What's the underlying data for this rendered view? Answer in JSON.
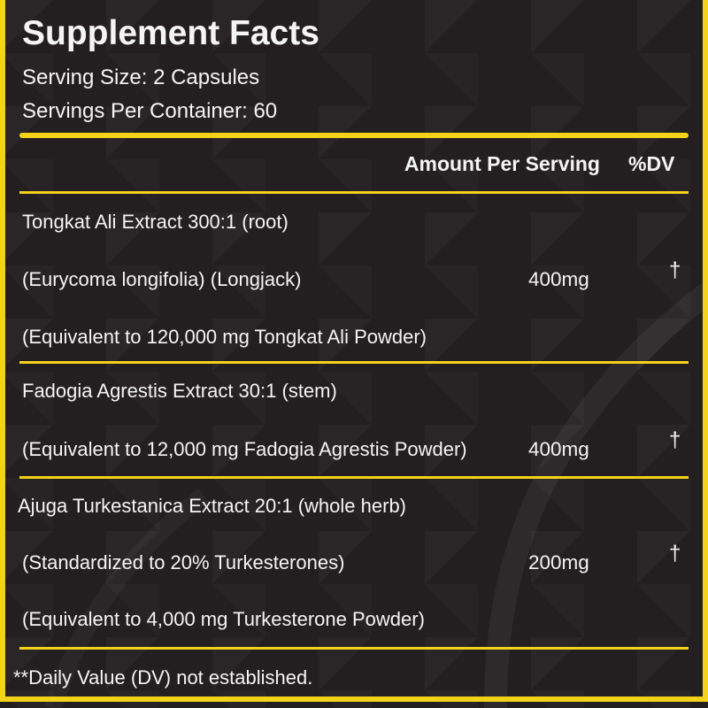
{
  "title": "Supplement Facts",
  "serving_size": "Serving Size: 2 Capsules",
  "servings_per_container": "Servings Per Container: 60",
  "header": {
    "amount": "Amount Per Serving",
    "dv": "%DV"
  },
  "ingredients": [
    {
      "lines": [
        "Tongkat Ali  Extract 300:1 (root)",
        "(Eurycoma longifolia) (Longjack)",
        "(Equivalent to 120,000 mg Tongkat Ali Powder)"
      ],
      "amount": "400mg",
      "dv": "†"
    },
    {
      "lines": [
        "Fadogia Agrestis Extract 30:1 (stem)",
        "(Equivalent to 12,000 mg Fadogia Agrestis Powder)"
      ],
      "amount": "400mg",
      "dv": "†"
    },
    {
      "lines": [
        "Ajuga Turkestanica Extract 20:1 (whole herb)",
        "(Standardized to 20% Turkesterones)",
        "(Equivalent to 4,000 mg Turkesterone Powder)"
      ],
      "amount": "200mg",
      "dv": "†"
    }
  ],
  "footnote": "**Daily Value (DV) not established.",
  "colors": {
    "accent": "#f5d21a",
    "background": "#231f20",
    "text": "#f4f4f4"
  }
}
